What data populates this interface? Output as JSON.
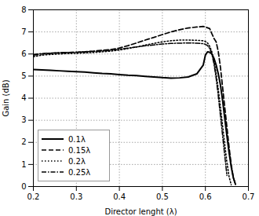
{
  "chart_data": {
    "type": "line",
    "xlabel": "Director lenght (λ)",
    "ylabel": "Gain (dB)",
    "xlim": [
      0.2,
      0.7
    ],
    "ylim": [
      0,
      8
    ],
    "xticks": [
      0.2,
      0.3,
      0.4,
      0.5,
      0.6,
      0.7
    ],
    "yticks": [
      0,
      1,
      2,
      3,
      4,
      5,
      6,
      7,
      8
    ],
    "grid": true,
    "legend": "lower left",
    "series": [
      {
        "name": "0.1λ",
        "color": "#000000",
        "line_style": "solid",
        "x": [
          0.2,
          0.22,
          0.24,
          0.26,
          0.28,
          0.3,
          0.32,
          0.34,
          0.36,
          0.38,
          0.4,
          0.42,
          0.44,
          0.46,
          0.48,
          0.5,
          0.52,
          0.54,
          0.56,
          0.58,
          0.595,
          0.6,
          0.605,
          0.61,
          0.615,
          0.62,
          0.625,
          0.63,
          0.635,
          0.64,
          0.645,
          0.65,
          0.655,
          0.66,
          0.665,
          0.67
        ],
        "values": [
          5.3,
          5.28,
          5.26,
          5.24,
          5.22,
          5.2,
          5.18,
          5.15,
          5.12,
          5.1,
          5.07,
          5.04,
          5.02,
          4.99,
          4.96,
          4.93,
          4.91,
          4.92,
          4.96,
          5.1,
          5.5,
          5.95,
          6.1,
          6.08,
          6.0,
          5.8,
          5.5,
          5.1,
          4.6,
          3.9,
          3.1,
          2.3,
          1.55,
          0.9,
          0.4,
          0.1
        ]
      },
      {
        "name": "0.15λ",
        "color": "#000000",
        "line_style": "dashed",
        "x": [
          0.2,
          0.22,
          0.24,
          0.26,
          0.28,
          0.3,
          0.32,
          0.34,
          0.36,
          0.38,
          0.4,
          0.42,
          0.44,
          0.46,
          0.48,
          0.5,
          0.52,
          0.54,
          0.56,
          0.58,
          0.595,
          0.6,
          0.61,
          0.615,
          0.618,
          0.62,
          0.625,
          0.63,
          0.635,
          0.64,
          0.645,
          0.65,
          0.655,
          0.66,
          0.665,
          0.67
        ],
        "values": [
          5.95,
          6.0,
          6.03,
          6.05,
          6.07,
          6.08,
          6.1,
          6.13,
          6.17,
          6.2,
          6.27,
          6.38,
          6.5,
          6.63,
          6.75,
          6.88,
          7.0,
          7.1,
          7.18,
          7.22,
          7.25,
          7.22,
          7.15,
          6.92,
          6.8,
          6.7,
          6.55,
          6.1,
          5.4,
          4.5,
          3.6,
          2.7,
          1.8,
          1.0,
          0.4,
          0.1
        ]
      },
      {
        "name": "0.2λ",
        "color": "#000000",
        "line_style": "dotted",
        "x": [
          0.2,
          0.22,
          0.24,
          0.26,
          0.28,
          0.3,
          0.32,
          0.34,
          0.36,
          0.38,
          0.4,
          0.42,
          0.44,
          0.46,
          0.48,
          0.5,
          0.52,
          0.54,
          0.56,
          0.58,
          0.595,
          0.6,
          0.605,
          0.61,
          0.615,
          0.62,
          0.625,
          0.63,
          0.635,
          0.64,
          0.645,
          0.65,
          0.655,
          0.66
        ],
        "values": [
          5.88,
          5.95,
          5.98,
          6.0,
          6.02,
          6.03,
          6.05,
          6.07,
          6.1,
          6.13,
          6.18,
          6.25,
          6.32,
          6.4,
          6.48,
          6.55,
          6.6,
          6.63,
          6.63,
          6.62,
          6.6,
          6.57,
          6.5,
          6.35,
          6.1,
          5.7,
          5.1,
          4.4,
          3.6,
          2.75,
          1.9,
          1.1,
          0.45,
          0.08
        ]
      },
      {
        "name": "0.25λ",
        "color": "#000000",
        "line_style": "dashdot",
        "x": [
          0.2,
          0.22,
          0.24,
          0.26,
          0.28,
          0.3,
          0.32,
          0.34,
          0.36,
          0.38,
          0.4,
          0.42,
          0.44,
          0.46,
          0.48,
          0.5,
          0.52,
          0.54,
          0.56,
          0.58,
          0.595,
          0.6,
          0.605,
          0.61,
          0.615,
          0.62,
          0.625,
          0.63,
          0.635,
          0.64,
          0.645,
          0.65
        ],
        "values": [
          5.98,
          6.02,
          6.04,
          6.06,
          6.07,
          6.08,
          6.1,
          6.12,
          6.14,
          6.17,
          6.21,
          6.27,
          6.32,
          6.37,
          6.41,
          6.45,
          6.48,
          6.49,
          6.5,
          6.49,
          6.47,
          6.44,
          6.38,
          6.25,
          6.0,
          5.55,
          4.9,
          4.1,
          3.2,
          2.3,
          1.4,
          0.5
        ]
      }
    ]
  }
}
